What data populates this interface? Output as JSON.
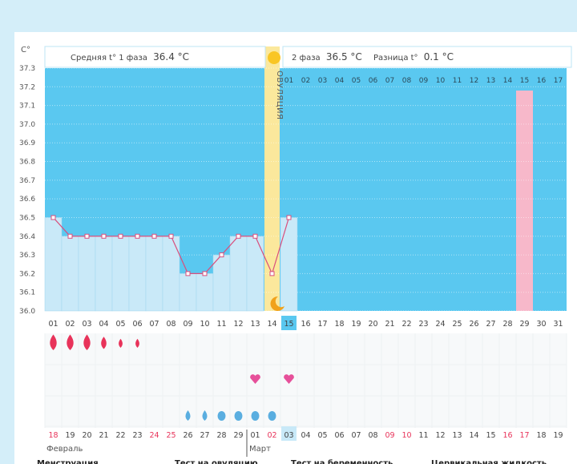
{
  "unit_label": "С°",
  "phase1": {
    "label": "Средняя t° 1 фаза",
    "value": "36.4 °C"
  },
  "phase2": {
    "label": "2 фаза",
    "value": "36.5 °C"
  },
  "diff": {
    "label": "Разница t°",
    "value": "0.1 °C"
  },
  "ovulation_label": "ОВУЛЯЦИЯ",
  "colors": {
    "accent": "#5ac8f0",
    "line": "#d94f7d",
    "ovulation": "#fbe89c",
    "highlight": "#f7b8ca",
    "red_day": "#e8335a",
    "drop_blue": "#5aaee0"
  },
  "chart_data": {
    "type": "line",
    "ylim": [
      36.0,
      37.3
    ],
    "y_ticks": [
      "36.0",
      "36.1",
      "36.2",
      "36.3",
      "36.4",
      "36.5",
      "36.6",
      "36.7",
      "36.8",
      "36.9",
      "37.0",
      "37.1",
      "37.2",
      "37.3"
    ],
    "x": [
      "01",
      "02",
      "03",
      "04",
      "05",
      "06",
      "07",
      "08",
      "09",
      "10",
      "11",
      "12",
      "13",
      "14",
      "15",
      "16",
      "17",
      "18",
      "19",
      "20",
      "21",
      "22",
      "23",
      "24",
      "25",
      "26",
      "27",
      "28",
      "29",
      "30",
      "31"
    ],
    "temperatures": [
      36.5,
      36.4,
      36.4,
      36.4,
      36.4,
      36.4,
      36.4,
      36.4,
      36.2,
      36.2,
      36.3,
      36.4,
      36.4,
      36.2,
      36.5
    ],
    "ovulation_day_index": 13,
    "today_index": 14,
    "phase2_days": [
      "01",
      "02",
      "03",
      "04",
      "05",
      "06",
      "07",
      "08",
      "09",
      "10",
      "11",
      "12",
      "13",
      "14",
      "15",
      "16",
      "17"
    ],
    "phase2_highlight_index": 14,
    "menstruation_day_indices": [
      0,
      1,
      2,
      3,
      4,
      5
    ],
    "menstruation_sizes": [
      3,
      3,
      3,
      2,
      1,
      1
    ],
    "ovulation_test_indices": [
      12,
      14
    ],
    "cervical_fluid_indices": [
      8,
      9,
      10,
      11,
      12,
      13
    ],
    "cervical_fluid_sizes": [
      1,
      1,
      2,
      2,
      2,
      2
    ],
    "calendar_dates": [
      "18",
      "19",
      "20",
      "21",
      "22",
      "23",
      "24",
      "25",
      "26",
      "27",
      "28",
      "29",
      "01",
      "02",
      "03",
      "04",
      "05",
      "06",
      "07",
      "08",
      "09",
      "10",
      "11",
      "12",
      "13",
      "14",
      "15",
      "16",
      "17",
      "18",
      "19"
    ],
    "calendar_red_indices": [
      0,
      6,
      7,
      13,
      20,
      21,
      27,
      28
    ],
    "calendar_today_index": 14,
    "month_labels": [
      {
        "label": "Февраль",
        "start_index": 0
      },
      {
        "label": "Март",
        "start_index": 12
      }
    ]
  },
  "legend": [
    "Менструация",
    "Тест на овуляцию",
    "Тест на беременность",
    "Цервикальная жидкость"
  ]
}
